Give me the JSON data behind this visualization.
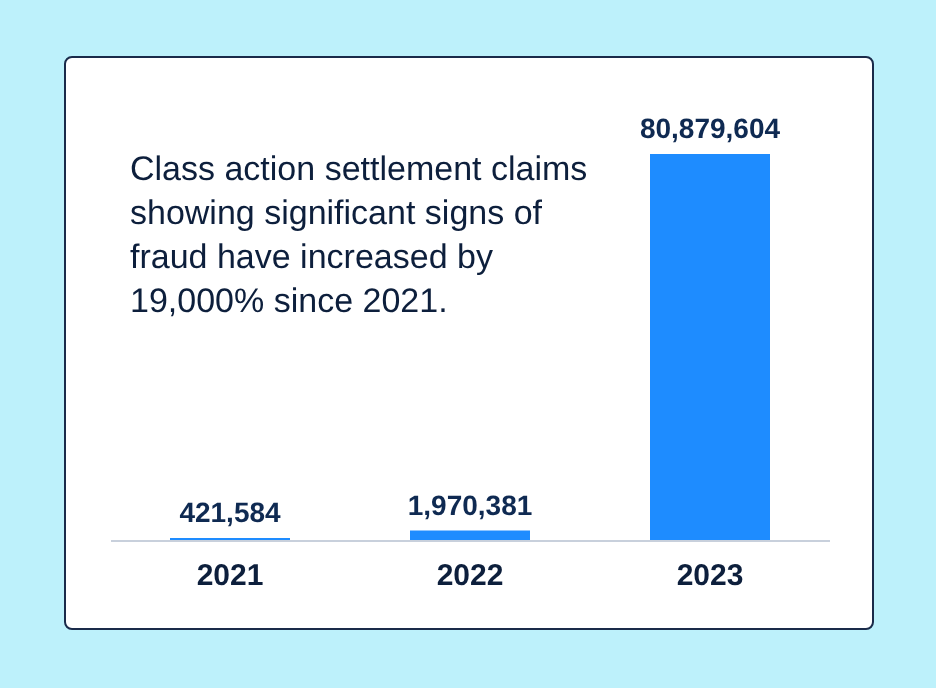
{
  "chart_data": {
    "type": "bar",
    "title": "Class action settlement claims showing significant signs of fraud have increased by 19,000% since 2021.",
    "categories": [
      "2021",
      "2022",
      "2023"
    ],
    "values": [
      421584,
      1970381,
      80879604
    ],
    "color": "#1e8cff",
    "value_labels": [
      "421,584",
      "1,970,381",
      "80,879,604"
    ]
  }
}
